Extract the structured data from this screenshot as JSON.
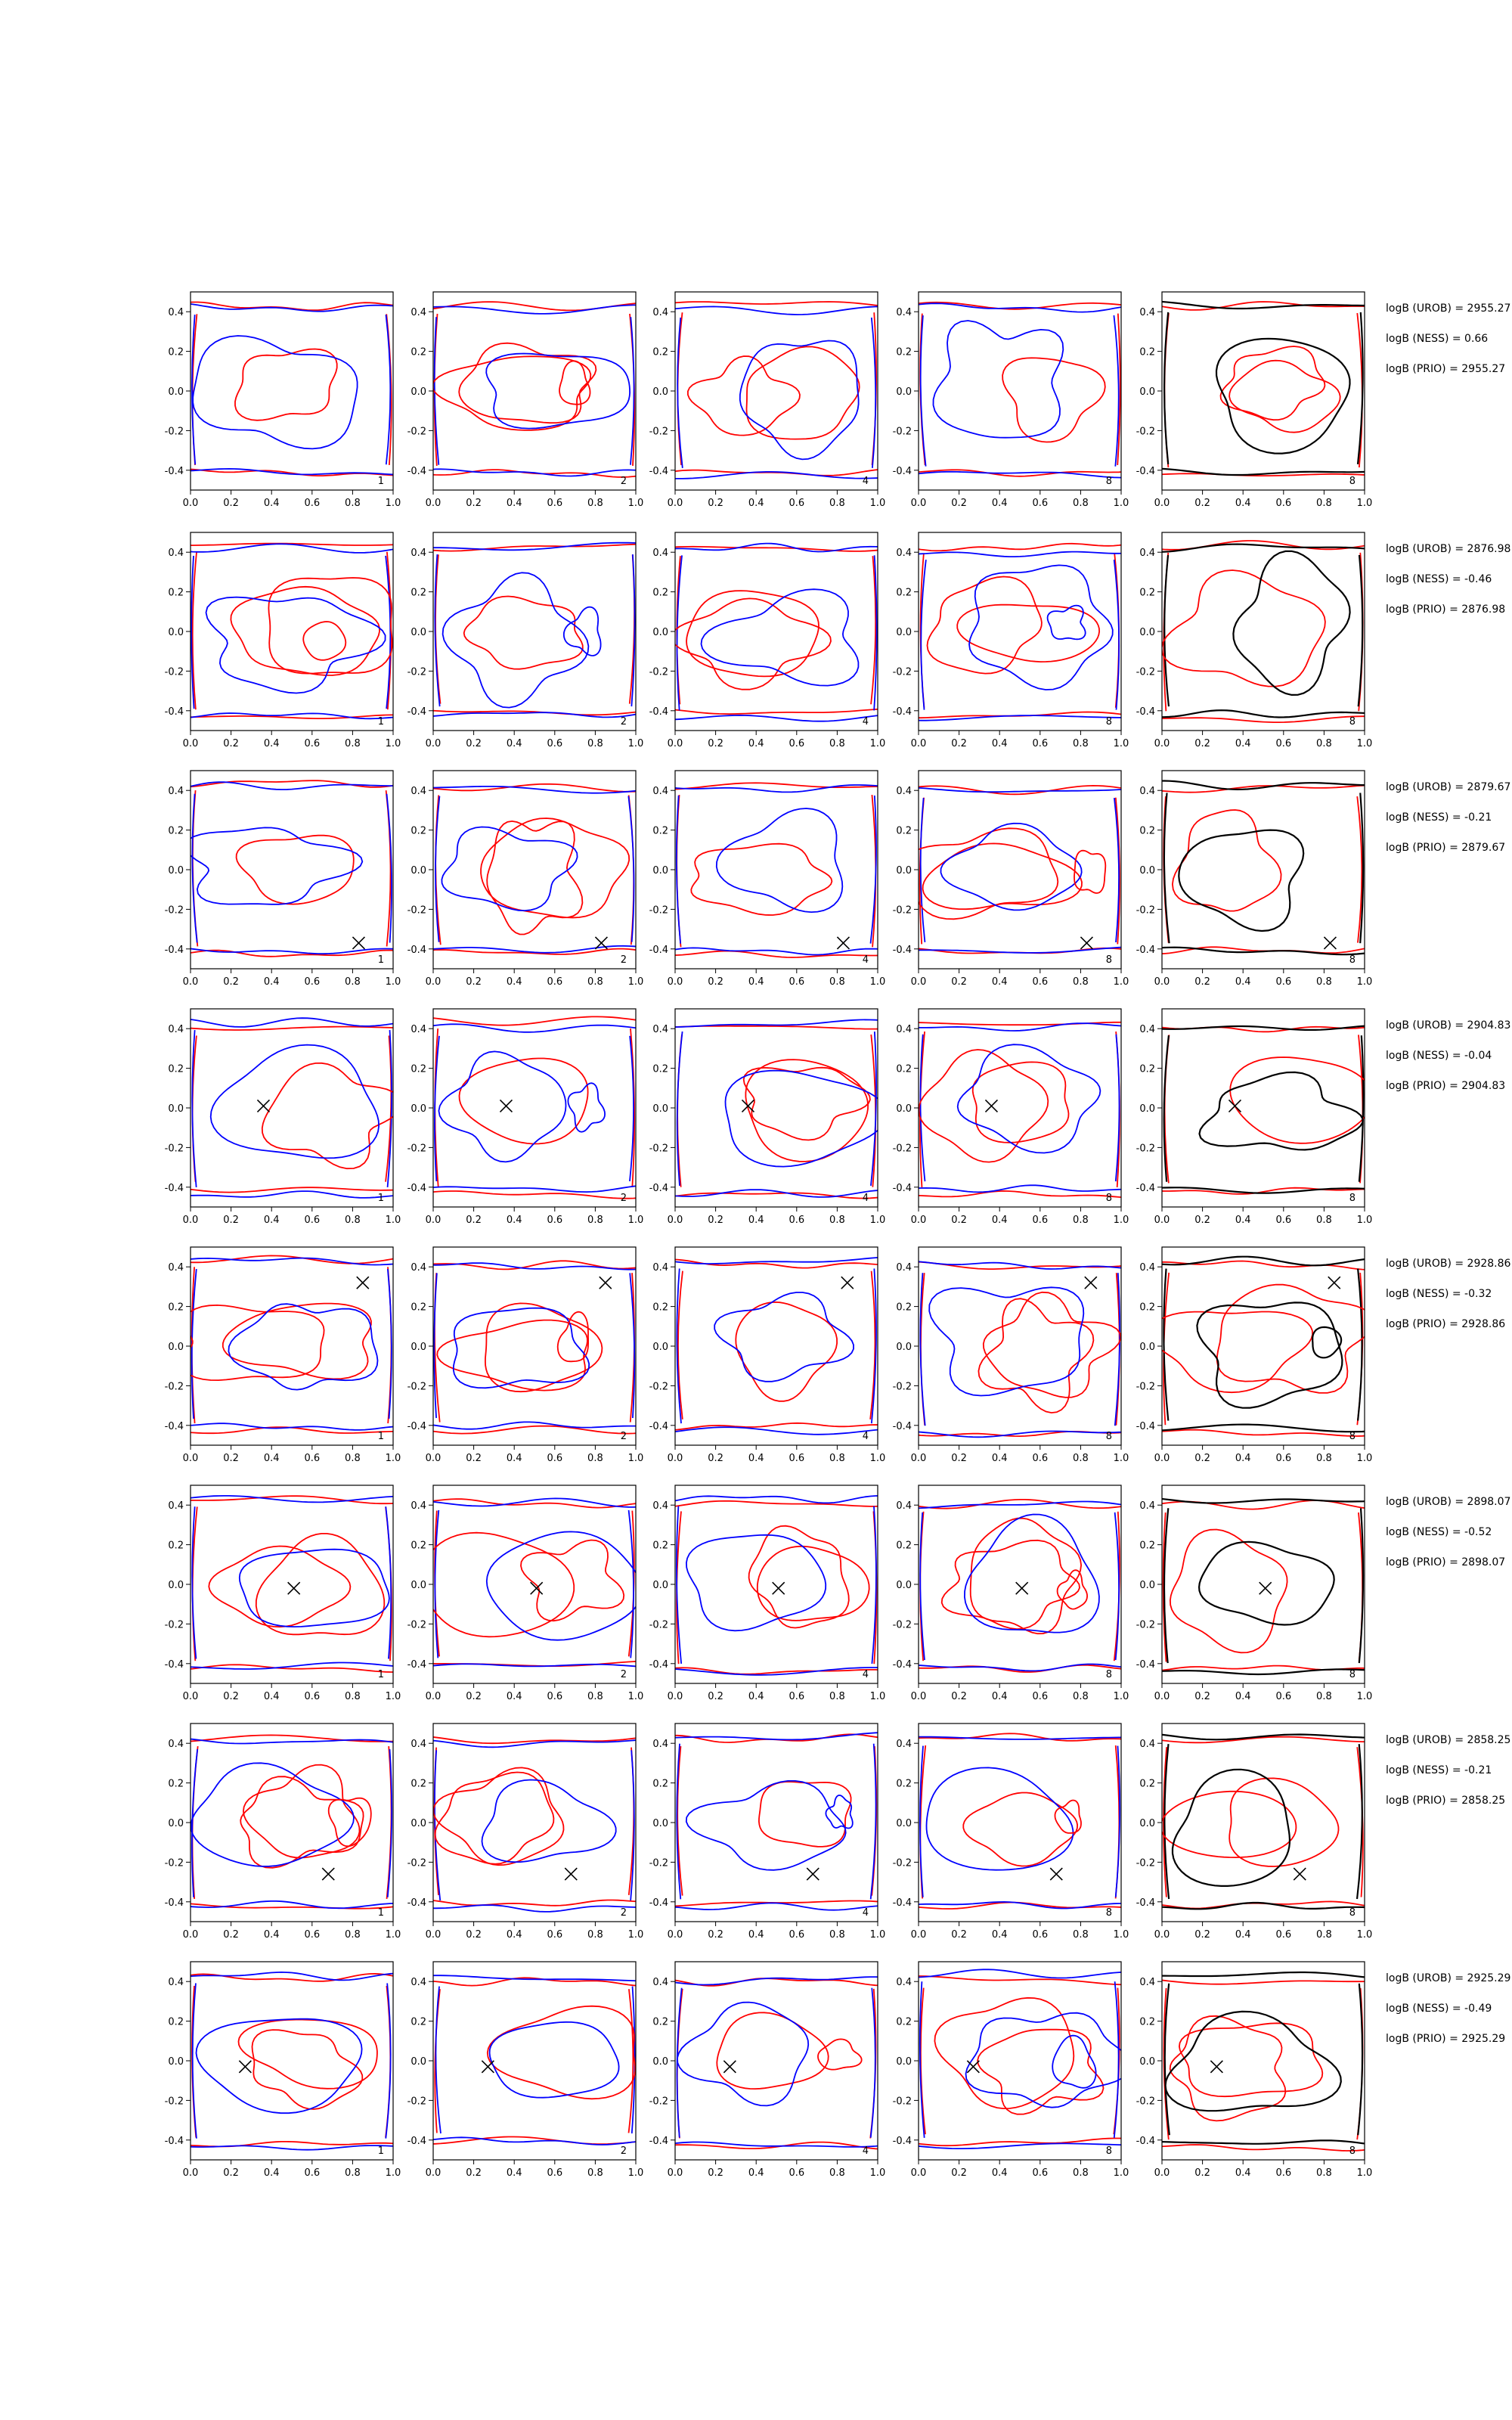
{
  "colors": {
    "red": "#ff0000",
    "blue": "#0000ff",
    "black": "#000000",
    "axes": "#000000",
    "background": "#ffffff"
  },
  "axes": {
    "xlim": [
      0.0,
      1.0
    ],
    "ylim": [
      -0.5,
      0.5
    ],
    "x_ticks": [
      "0.0",
      "0.2",
      "0.4",
      "0.6",
      "0.8",
      "1.0"
    ],
    "y_ticks": [
      "0.4",
      "0.2",
      "0.0",
      "-0.2",
      "-0.4"
    ],
    "grid": false
  },
  "column_labels": [
    "1",
    "2",
    "4",
    "8",
    "8"
  ],
  "rows": [
    {
      "stats": [
        "logB (UROB) = 2955.27",
        "logB (NESS) = 0.66",
        "logB (PRIO) = 2955.27"
      ],
      "marker": null
    },
    {
      "stats": [
        "logB (UROB) = 2876.98",
        "logB (NESS) = -0.46",
        "logB (PRIO) = 2876.98"
      ],
      "marker": null
    },
    {
      "stats": [
        "logB (UROB) = 2879.67",
        "logB (NESS) = -0.21",
        "logB (PRIO) = 2879.67"
      ],
      "marker": [
        0.83,
        -0.37
      ]
    },
    {
      "stats": [
        "logB (UROB) = 2904.83",
        "logB (NESS) = -0.04",
        "logB (PRIO) = 2904.83"
      ],
      "marker": [
        0.36,
        0.01
      ]
    },
    {
      "stats": [
        "logB (UROB) = 2928.86",
        "logB (NESS) = -0.32",
        "logB (PRIO) = 2928.86"
      ],
      "marker": [
        0.85,
        0.32
      ]
    },
    {
      "stats": [
        "logB (UROB) = 2898.07",
        "logB (NESS) = -0.52",
        "logB (PRIO) = 2898.07"
      ],
      "marker": [
        0.51,
        -0.02
      ]
    },
    {
      "stats": [
        "logB (UROB) = 2858.25",
        "logB (NESS) = -0.21",
        "logB (PRIO) = 2858.25"
      ],
      "marker": [
        0.68,
        -0.26
      ]
    },
    {
      "stats": [
        "logB (UROB) = 2925.29",
        "logB (NESS) = -0.49",
        "logB (PRIO) = 2925.29"
      ],
      "marker": [
        0.27,
        -0.03
      ]
    }
  ],
  "chart_data": {
    "type": "line",
    "description_grid": "8 rows x 5 columns of contour panels; columns 1-4 overlay red and blue contours, column 5 overlays red and black contours",
    "xlim": [
      0.0,
      1.0
    ],
    "ylim": [
      -0.5,
      0.5
    ],
    "series_colors": [
      "red",
      "blue",
      "black"
    ],
    "markers": [
      null,
      null,
      [
        0.83,
        -0.37
      ],
      [
        0.36,
        0.01
      ],
      [
        0.85,
        0.32
      ],
      [
        0.51,
        -0.02
      ],
      [
        0.68,
        -0.26
      ],
      [
        0.27,
        -0.03
      ]
    ],
    "log_bayes": [
      {
        "UROB": 2955.27,
        "NESS": 0.66,
        "PRIO": 2955.27
      },
      {
        "UROB": 2876.98,
        "NESS": -0.46,
        "PRIO": 2876.98
      },
      {
        "UROB": 2879.67,
        "NESS": -0.21,
        "PRIO": 2879.67
      },
      {
        "UROB": 2904.83,
        "NESS": -0.04,
        "PRIO": 2904.83
      },
      {
        "UROB": 2928.86,
        "NESS": -0.32,
        "PRIO": 2928.86
      },
      {
        "UROB": 2898.07,
        "NESS": -0.52,
        "PRIO": 2898.07
      },
      {
        "UROB": 2858.25,
        "NESS": -0.21,
        "PRIO": 2858.25
      },
      {
        "UROB": 2925.29,
        "NESS": -0.49,
        "PRIO": 2925.29
      }
    ]
  }
}
